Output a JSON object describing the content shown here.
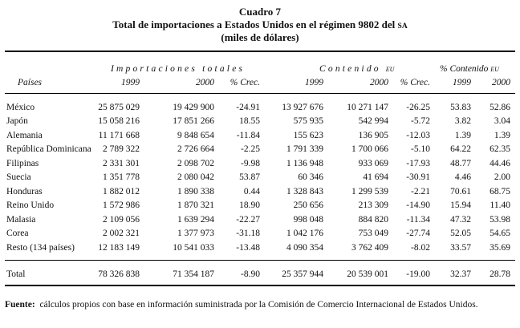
{
  "title": {
    "line1": "Cuadro 7",
    "line2": "Total de importaciones a Estados Unidos en el régimen 9802 del",
    "line2_sa": "SA",
    "line3": "(miles de dólares)"
  },
  "groups": {
    "imports": "Importaciones totales",
    "content": "Contenido",
    "content_eu": "EU",
    "pct_content": "% Contenido",
    "pct_content_eu": "EU"
  },
  "columns": [
    "Países",
    "1999",
    "2000",
    "% Crec.",
    "1999",
    "2000",
    "% Crec.",
    "1999",
    "2000"
  ],
  "rows": [
    [
      "México",
      "25 875 029",
      "19 429 900",
      "-24.91",
      "13 927 676",
      "10 271 147",
      "-26.25",
      "53.83",
      "52.86"
    ],
    [
      "Japón",
      "15 058 216",
      "17 851 266",
      "18.55",
      "575 935",
      "542 994",
      "-5.72",
      "3.82",
      "3.04"
    ],
    [
      "Alemania",
      "11 171 668",
      "9 848 654",
      "-11.84",
      "155 623",
      "136 905",
      "-12.03",
      "1.39",
      "1.39"
    ],
    [
      "República Dominicana",
      "2 789 322",
      "2 726 664",
      "-2.25",
      "1 791 339",
      "1 700 066",
      "-5.10",
      "64.22",
      "62.35"
    ],
    [
      "Filipinas",
      "2 331 301",
      "2 098 702",
      "-9.98",
      "1 136 948",
      "933 069",
      "-17.93",
      "48.77",
      "44.46"
    ],
    [
      "Suecia",
      "1 351 778",
      "2 080 042",
      "53.87",
      "60 346",
      "41 694",
      "-30.91",
      "4.46",
      "2.00"
    ],
    [
      "Honduras",
      "1 882 012",
      "1 890 338",
      "0.44",
      "1 328 843",
      "1 299 539",
      "-2.21",
      "70.61",
      "68.75"
    ],
    [
      "Reino Unido",
      "1 572 986",
      "1 870 321",
      "18.90",
      "250 656",
      "213 309",
      "-14.90",
      "15.94",
      "11.40"
    ],
    [
      "Malasia",
      "2 109 056",
      "1 639 294",
      "-22.27",
      "998 048",
      "884 820",
      "-11.34",
      "47.32",
      "53.98"
    ],
    [
      "Corea",
      "2 002 321",
      "1 377 973",
      "-31.18",
      "1 042 176",
      "753 049",
      "-27.74",
      "52.05",
      "54.65"
    ],
    [
      "Resto (134 países)",
      "12 183 149",
      "10 541 033",
      "-13.48",
      "4 090 354",
      "3 762 409",
      "-8.02",
      "33.57",
      "35.69"
    ]
  ],
  "total": [
    "Total",
    "78 326 838",
    "71 354 187",
    "-8.90",
    "25 357 944",
    "20 539 001",
    "-19.00",
    "32.37",
    "28.78"
  ],
  "source": {
    "label": "Fuente:",
    "text": "cálculos propios con base en información suministrada por la Comisión de Comercio Internacional de Estados Unidos."
  }
}
